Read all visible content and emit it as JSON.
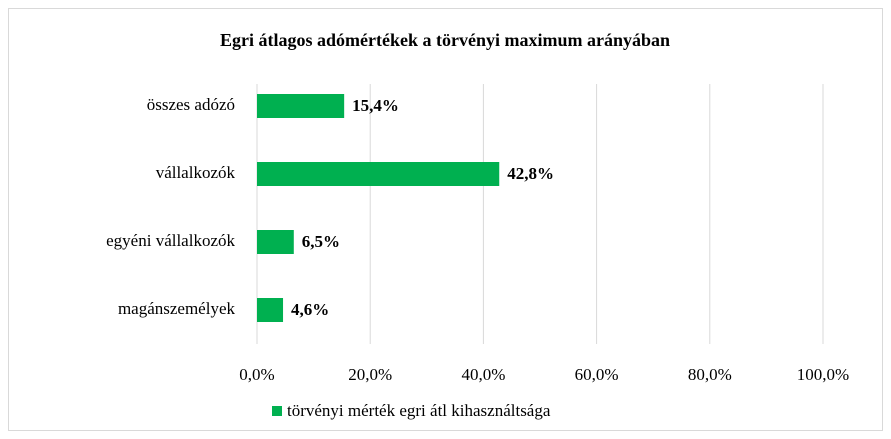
{
  "chart_data": {
    "type": "bar",
    "orientation": "horizontal",
    "title": "Egri átlagos adómértékek a törvényi maximum arányában",
    "categories": [
      "összes adózó",
      "vállalkozók",
      "egyéni vállalkozók",
      "magánszemélyek"
    ],
    "series": [
      {
        "name": "törvényi mérték egri átl kihasználtsága",
        "color": "#00b050",
        "values": [
          15.4,
          42.8,
          6.5,
          4.6
        ],
        "value_labels": [
          "15,4%",
          "42,8%",
          "6,5%",
          "4,6%"
        ]
      }
    ],
    "xlim": [
      0,
      100
    ],
    "xticks": [
      {
        "value": 0,
        "label": "0,0%"
      },
      {
        "value": 20,
        "label": "20,0%"
      },
      {
        "value": 40,
        "label": "40,0%"
      },
      {
        "value": 60,
        "label": "60,0%"
      },
      {
        "value": 80,
        "label": "80,0%"
      },
      {
        "value": 100,
        "label": "100,0%"
      }
    ],
    "grid": true,
    "legend": "bottom"
  }
}
